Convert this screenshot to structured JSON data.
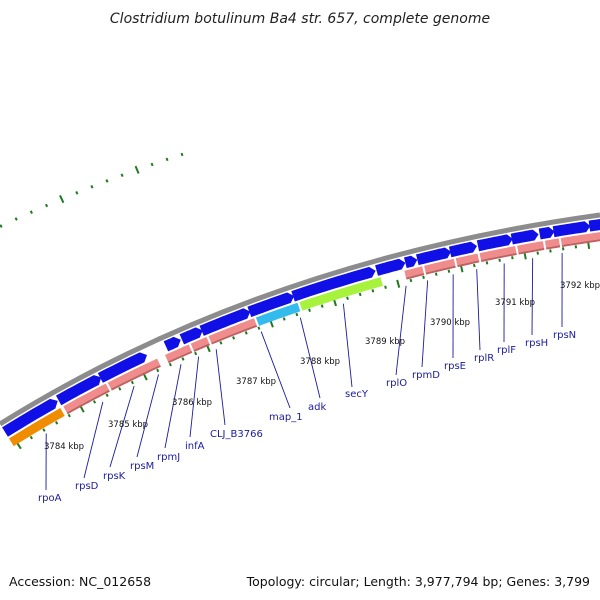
{
  "title": "Clostridium botulinum Ba4 str. 657, complete genome",
  "footer": {
    "accession": "Accession: NC_012658",
    "summary": "Topology: circular; Length: 3,977,794 bp; Genes: 3,799"
  },
  "kbp_labels": [
    "3784 kbp",
    "3785 kbp",
    "3786 kbp",
    "3787 kbp",
    "3788 kbp",
    "3789 kbp",
    "3790 kbp",
    "3791 kbp",
    "3792 kbp"
  ],
  "gene_labels": [
    "rpoA",
    "rpsD",
    "rpsK",
    "rpsM",
    "rpmJ",
    "infA",
    "CLJ_B3766",
    "map_1",
    "adk",
    "secY",
    "rplO",
    "rpmD",
    "rpsE",
    "rplR",
    "rplF",
    "rpsH",
    "rpsN"
  ],
  "colors": {
    "backbone": "#8c8c8c",
    "cds": "#1010e6",
    "gene": "#f08c8c",
    "gene_shadow": "#c06060",
    "highlight_orange": "#f08c00",
    "highlight_cyan": "#33bbee",
    "highlight_green": "#a6f23c",
    "ticks": "#1f7a1f",
    "leader": "#1a1aa0"
  }
}
